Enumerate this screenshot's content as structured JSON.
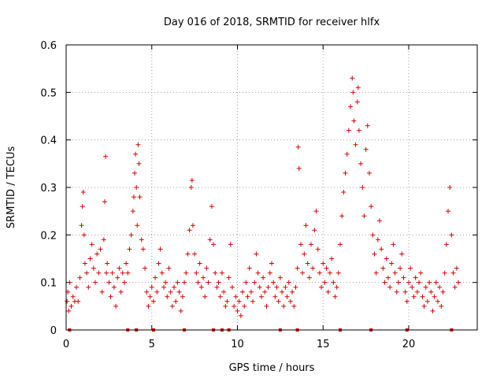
{
  "chart_data": {
    "type": "scatter",
    "title": "Day 016 of 2018, SRMTID for receiver hlfx",
    "xlabel": "GPS time / hours",
    "ylabel": "SRMTID / TECUs",
    "xlim": [
      0,
      24
    ],
    "ylim": [
      0,
      0.6
    ],
    "x_ticks": [
      0,
      5,
      10,
      15,
      20
    ],
    "x_tick_labels": [
      "0",
      "5",
      "10",
      "15",
      "20"
    ],
    "y_ticks": [
      0,
      0.1,
      0.2,
      0.3,
      0.4,
      0.5,
      0.6
    ],
    "y_tick_labels": [
      "0",
      "0.1",
      "0.2",
      "0.3",
      "0.4",
      "0.5",
      "0.6"
    ],
    "grid": true,
    "marker": "+",
    "color": "#dd0000",
    "series": [
      {
        "name": "SRMTID",
        "points": [
          [
            0.05,
            0.06
          ],
          [
            0.1,
            0.08
          ],
          [
            0.15,
            0.04
          ],
          [
            0.2,
            0.1
          ],
          [
            0.3,
            0.05
          ],
          [
            0.4,
            0.07
          ],
          [
            0.5,
            0.06
          ],
          [
            0.6,
            0.09
          ],
          [
            0.7,
            0.06
          ],
          [
            0.8,
            0.11
          ],
          [
            0.9,
            0.22
          ],
          [
            0.95,
            0.26
          ],
          [
            1.0,
            0.29
          ],
          [
            1.05,
            0.2
          ],
          [
            1.1,
            0.14
          ],
          [
            1.2,
            0.12
          ],
          [
            1.3,
            0.09
          ],
          [
            1.4,
            0.15
          ],
          [
            1.5,
            0.18
          ],
          [
            1.6,
            0.13
          ],
          [
            1.7,
            0.1
          ],
          [
            1.8,
            0.16
          ],
          [
            1.9,
            0.12
          ],
          [
            2.0,
            0.17
          ],
          [
            2.1,
            0.08
          ],
          [
            2.2,
            0.19
          ],
          [
            2.25,
            0.27
          ],
          [
            2.3,
            0.365
          ],
          [
            2.35,
            0.12
          ],
          [
            2.4,
            0.14
          ],
          [
            2.5,
            0.1
          ],
          [
            2.6,
            0.07
          ],
          [
            2.7,
            0.12
          ],
          [
            2.8,
            0.09
          ],
          [
            2.9,
            0.05
          ],
          [
            3.0,
            0.11
          ],
          [
            3.1,
            0.13
          ],
          [
            3.2,
            0.08
          ],
          [
            3.3,
            0.12
          ],
          [
            3.4,
            0.1
          ],
          [
            3.5,
            0.14
          ],
          [
            3.6,
            0.12
          ],
          [
            3.7,
            0.17
          ],
          [
            3.8,
            0.2
          ],
          [
            3.9,
            0.25
          ],
          [
            3.95,
            0.28
          ],
          [
            4.0,
            0.33
          ],
          [
            4.05,
            0.37
          ],
          [
            4.1,
            0.3
          ],
          [
            4.15,
            0.22
          ],
          [
            4.2,
            0.39
          ],
          [
            4.25,
            0.35
          ],
          [
            4.3,
            0.28
          ],
          [
            4.4,
            0.19
          ],
          [
            4.5,
            0.17
          ],
          [
            4.6,
            0.13
          ],
          [
            4.7,
            0.08
          ],
          [
            4.8,
            0.05
          ],
          [
            4.9,
            0.07
          ],
          [
            5.0,
            0.09
          ],
          [
            5.1,
            0.06
          ],
          [
            5.2,
            0.11
          ],
          [
            5.3,
            0.08
          ],
          [
            5.4,
            0.14
          ],
          [
            5.5,
            0.17
          ],
          [
            5.6,
            0.12
          ],
          [
            5.7,
            0.09
          ],
          [
            5.8,
            0.1
          ],
          [
            5.9,
            0.07
          ],
          [
            6.0,
            0.13
          ],
          [
            6.1,
            0.08
          ],
          [
            6.2,
            0.05
          ],
          [
            6.3,
            0.09
          ],
          [
            6.4,
            0.06
          ],
          [
            6.5,
            0.1
          ],
          [
            6.6,
            0.08
          ],
          [
            6.7,
            0.04
          ],
          [
            6.8,
            0.07
          ],
          [
            6.9,
            0.1
          ],
          [
            7.0,
            0.12
          ],
          [
            7.1,
            0.16
          ],
          [
            7.2,
            0.21
          ],
          [
            7.3,
            0.3
          ],
          [
            7.35,
            0.315
          ],
          [
            7.4,
            0.22
          ],
          [
            7.5,
            0.16
          ],
          [
            7.6,
            0.12
          ],
          [
            7.7,
            0.1
          ],
          [
            7.8,
            0.14
          ],
          [
            7.9,
            0.09
          ],
          [
            8.0,
            0.11
          ],
          [
            8.1,
            0.07
          ],
          [
            8.2,
            0.13
          ],
          [
            8.3,
            0.1
          ],
          [
            8.4,
            0.19
          ],
          [
            8.5,
            0.26
          ],
          [
            8.6,
            0.18
          ],
          [
            8.7,
            0.12
          ],
          [
            8.8,
            0.09
          ],
          [
            8.9,
            0.1
          ],
          [
            9.0,
            0.07
          ],
          [
            9.1,
            0.12
          ],
          [
            9.2,
            0.08
          ],
          [
            9.3,
            0.05
          ],
          [
            9.4,
            0.06
          ],
          [
            9.5,
            0.11
          ],
          [
            9.6,
            0.18
          ],
          [
            9.7,
            0.09
          ],
          [
            9.8,
            0.05
          ],
          [
            9.9,
            0.07
          ],
          [
            10.0,
            0.04
          ],
          [
            10.1,
            0.06
          ],
          [
            10.2,
            0.03
          ],
          [
            10.3,
            0.08
          ],
          [
            10.4,
            0.05
          ],
          [
            10.5,
            0.1
          ],
          [
            10.6,
            0.07
          ],
          [
            10.7,
            0.13
          ],
          [
            10.8,
            0.08
          ],
          [
            10.9,
            0.06
          ],
          [
            11.0,
            0.1
          ],
          [
            11.1,
            0.16
          ],
          [
            11.2,
            0.12
          ],
          [
            11.3,
            0.09
          ],
          [
            11.4,
            0.07
          ],
          [
            11.5,
            0.11
          ],
          [
            11.6,
            0.08
          ],
          [
            11.7,
            0.05
          ],
          [
            11.8,
            0.09
          ],
          [
            11.9,
            0.12
          ],
          [
            12.0,
            0.14
          ],
          [
            12.1,
            0.1
          ],
          [
            12.2,
            0.07
          ],
          [
            12.3,
            0.09
          ],
          [
            12.4,
            0.06
          ],
          [
            12.5,
            0.11
          ],
          [
            12.6,
            0.08
          ],
          [
            12.7,
            0.05
          ],
          [
            12.8,
            0.09
          ],
          [
            12.9,
            0.07
          ],
          [
            13.0,
            0.1
          ],
          [
            13.1,
            0.06
          ],
          [
            13.2,
            0.08
          ],
          [
            13.3,
            0.05
          ],
          [
            13.4,
            0.09
          ],
          [
            13.5,
            0.13
          ],
          [
            13.55,
            0.385
          ],
          [
            13.6,
            0.34
          ],
          [
            13.7,
            0.18
          ],
          [
            13.8,
            0.12
          ],
          [
            13.9,
            0.16
          ],
          [
            14.0,
            0.22
          ],
          [
            14.1,
            0.14
          ],
          [
            14.2,
            0.11
          ],
          [
            14.3,
            0.18
          ],
          [
            14.4,
            0.13
          ],
          [
            14.5,
            0.21
          ],
          [
            14.6,
            0.25
          ],
          [
            14.7,
            0.17
          ],
          [
            14.8,
            0.12
          ],
          [
            14.9,
            0.09
          ],
          [
            15.0,
            0.14
          ],
          [
            15.1,
            0.1
          ],
          [
            15.2,
            0.13
          ],
          [
            15.3,
            0.08
          ],
          [
            15.4,
            0.12
          ],
          [
            15.5,
            0.15
          ],
          [
            15.6,
            0.1
          ],
          [
            15.7,
            0.07
          ],
          [
            15.8,
            0.09
          ],
          [
            15.9,
            0.12
          ],
          [
            16.0,
            0.18
          ],
          [
            16.1,
            0.24
          ],
          [
            16.2,
            0.29
          ],
          [
            16.3,
            0.33
          ],
          [
            16.4,
            0.37
          ],
          [
            16.5,
            0.42
          ],
          [
            16.6,
            0.47
          ],
          [
            16.7,
            0.53
          ],
          [
            16.75,
            0.5
          ],
          [
            16.8,
            0.44
          ],
          [
            16.9,
            0.39
          ],
          [
            17.0,
            0.48
          ],
          [
            17.05,
            0.51
          ],
          [
            17.1,
            0.42
          ],
          [
            17.2,
            0.35
          ],
          [
            17.3,
            0.3
          ],
          [
            17.4,
            0.24
          ],
          [
            17.5,
            0.38
          ],
          [
            17.6,
            0.43
          ],
          [
            17.7,
            0.33
          ],
          [
            17.8,
            0.26
          ],
          [
            17.9,
            0.2
          ],
          [
            18.0,
            0.16
          ],
          [
            18.1,
            0.12
          ],
          [
            18.2,
            0.19
          ],
          [
            18.3,
            0.23
          ],
          [
            18.4,
            0.17
          ],
          [
            18.5,
            0.13
          ],
          [
            18.6,
            0.1
          ],
          [
            18.7,
            0.15
          ],
          [
            18.8,
            0.11
          ],
          [
            18.9,
            0.09
          ],
          [
            19.0,
            0.14
          ],
          [
            19.1,
            0.18
          ],
          [
            19.2,
            0.12
          ],
          [
            19.3,
            0.08
          ],
          [
            19.4,
            0.1
          ],
          [
            19.5,
            0.13
          ],
          [
            19.6,
            0.16
          ],
          [
            19.7,
            0.11
          ],
          [
            19.8,
            0.08
          ],
          [
            19.9,
            0.06
          ],
          [
            20.0,
            0.1
          ],
          [
            20.1,
            0.13
          ],
          [
            20.2,
            0.09
          ],
          [
            20.3,
            0.07
          ],
          [
            20.4,
            0.11
          ],
          [
            20.5,
            0.08
          ],
          [
            20.6,
            0.1
          ],
          [
            20.7,
            0.12
          ],
          [
            20.8,
            0.07
          ],
          [
            20.9,
            0.05
          ],
          [
            21.0,
            0.09
          ],
          [
            21.1,
            0.06
          ],
          [
            21.2,
            0.1
          ],
          [
            21.3,
            0.08
          ],
          [
            21.4,
            0.04
          ],
          [
            21.5,
            0.07
          ],
          [
            21.6,
            0.1
          ],
          [
            21.7,
            0.06
          ],
          [
            21.8,
            0.09
          ],
          [
            21.9,
            0.05
          ],
          [
            22.0,
            0.08
          ],
          [
            22.1,
            0.12
          ],
          [
            22.2,
            0.18
          ],
          [
            22.3,
            0.25
          ],
          [
            22.4,
            0.3
          ],
          [
            22.5,
            0.2
          ],
          [
            22.6,
            0.12
          ],
          [
            22.7,
            0.09
          ],
          [
            22.8,
            0.13
          ],
          [
            22.9,
            0.1
          ]
        ]
      }
    ],
    "gap_markers_x": [
      0.2,
      3.6,
      4.1,
      5.1,
      6.9,
      8.6,
      9.1,
      9.5,
      12.5,
      13.5,
      16.0,
      17.8,
      19.9,
      22.5
    ]
  }
}
